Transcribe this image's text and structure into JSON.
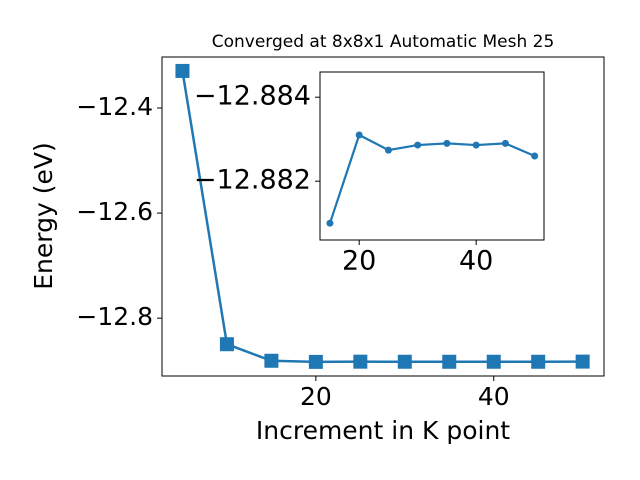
{
  "chart_data": [
    {
      "type": "line",
      "title": "Converged at 8x8x1 Automatic Mesh 25",
      "x_label": "Increment in K point",
      "y_label": "Energy (eV)",
      "x": [
        5,
        10,
        15,
        20,
        25,
        30,
        35,
        40,
        45,
        50
      ],
      "values": [
        -12.3295,
        -12.8495,
        -12.881,
        -12.8831,
        -12.88274,
        -12.88286,
        -12.8829,
        -12.88286,
        -12.8829,
        -12.8826
      ],
      "color": "#1f77b4",
      "marker": "square",
      "xlim": [
        2.7,
        52.4
      ],
      "ylim": [
        -12.91,
        -12.303
      ],
      "xticks": [
        20,
        40
      ],
      "yticks": [
        {
          "value": -12.4,
          "label": "−12.4"
        },
        {
          "value": -12.6,
          "label": "−12.6"
        },
        {
          "value": -12.8,
          "label": "−12.8"
        }
      ]
    },
    {
      "type": "line",
      "x": [
        15,
        20,
        25,
        30,
        35,
        40,
        45,
        50
      ],
      "values": [
        -12.881,
        -12.8831,
        -12.88274,
        -12.88286,
        -12.8829,
        -12.88286,
        -12.8829,
        -12.8826
      ],
      "color": "#1f77b4",
      "marker": "circle",
      "xlim": [
        13.3,
        51.6
      ],
      "ylim": [
        -12.8806,
        -12.8846
      ],
      "xticks": [
        20,
        40
      ],
      "yticks": [
        {
          "value": -12.884,
          "label": "−12.884"
        },
        {
          "value": -12.882,
          "label": "−12.882"
        }
      ]
    }
  ]
}
